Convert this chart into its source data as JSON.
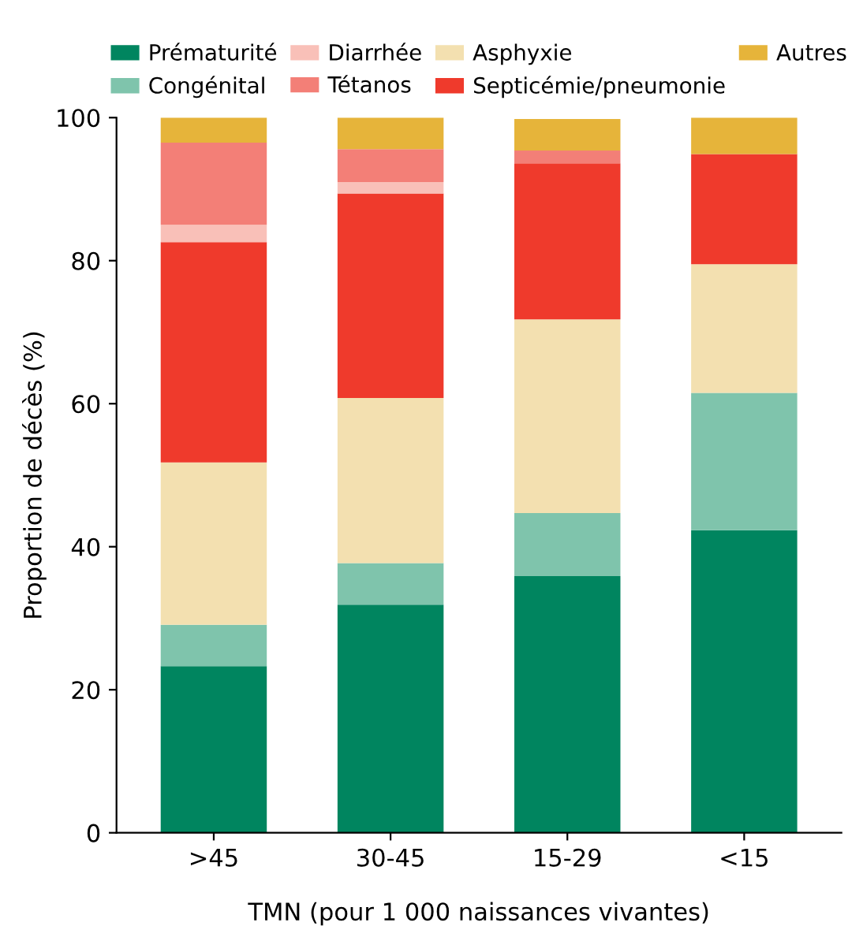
{
  "chart_data": {
    "type": "bar",
    "stacked": true,
    "xlabel": "TMN (pour 1 000 naissances vivantes)",
    "ylabel": "Proportion de décès (%)",
    "categories": [
      ">45",
      "30-45",
      "15-29",
      "<15"
    ],
    "ylim": [
      0,
      100
    ],
    "yticks": [
      0,
      20,
      40,
      60,
      80,
      100
    ],
    "grid": false,
    "legend": "top",
    "series": [
      {
        "name": "Prématurité",
        "color": "#00855f",
        "values": [
          23.3,
          31.9,
          35.9,
          42.3
        ]
      },
      {
        "name": "Congénital",
        "color": "#7fc4ac",
        "values": [
          5.8,
          5.8,
          8.8,
          19.2
        ]
      },
      {
        "name": "Asphyxie",
        "color": "#f3e0b0",
        "values": [
          22.7,
          23.1,
          27.1,
          18.0
        ]
      },
      {
        "name": "Septicémie/pneumonie",
        "color": "#ef3a2c",
        "values": [
          30.8,
          28.6,
          21.8,
          15.4
        ]
      },
      {
        "name": "Diarrhée",
        "color": "#f9c0b8",
        "values": [
          2.4,
          1.6,
          0,
          0
        ]
      },
      {
        "name": "Tétanos",
        "color": "#f37f77",
        "values": [
          11.5,
          4.6,
          1.8,
          0
        ]
      },
      {
        "name": "Autres",
        "color": "#e6b43a",
        "values": [
          3.5,
          4.4,
          4.4,
          5.1
        ]
      }
    ]
  }
}
